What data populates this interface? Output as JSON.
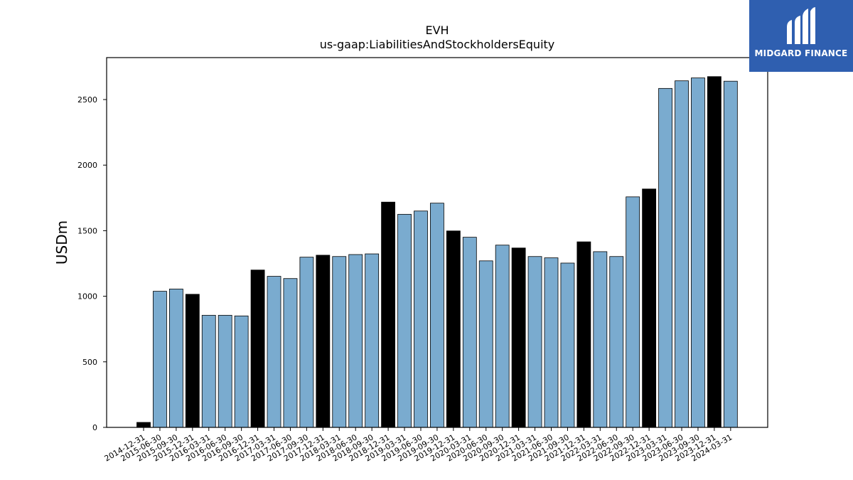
{
  "chart_data": {
    "type": "bar",
    "title": "EVH",
    "subtitle": "us-gaap:LiabilitiesAndStockholdersEquity",
    "xlabel": "",
    "ylabel": "USDm",
    "ylim": [
      0,
      2820
    ],
    "yticks": [
      0,
      500,
      1000,
      1500,
      2000,
      2500
    ],
    "grid": false,
    "legend": "none",
    "categories": [
      "2014-12-31",
      "2015-06-30",
      "2015-09-30",
      "2015-12-31",
      "2016-03-31",
      "2016-06-30",
      "2016-09-30",
      "2016-12-31",
      "2017-03-31",
      "2017-06-30",
      "2017-09-30",
      "2017-12-31",
      "2018-03-31",
      "2018-06-30",
      "2018-09-30",
      "2018-12-31",
      "2019-03-31",
      "2019-06-30",
      "2019-09-30",
      "2019-12-31",
      "2020-03-31",
      "2020-06-30",
      "2020-09-30",
      "2020-12-31",
      "2021-03-31",
      "2021-06-30",
      "2021-09-30",
      "2021-12-31",
      "2022-03-31",
      "2022-06-30",
      "2022-09-30",
      "2022-12-31",
      "2023-03-31",
      "2023-06-30",
      "2023-09-30",
      "2023-12-31",
      "2024-03-31"
    ],
    "values": [
      38,
      1038,
      1055,
      1015,
      855,
      855,
      850,
      1200,
      1152,
      1135,
      1298,
      1313,
      1303,
      1318,
      1323,
      1718,
      1625,
      1650,
      1710,
      1498,
      1450,
      1270,
      1390,
      1368,
      1303,
      1293,
      1253,
      1415,
      1340,
      1303,
      1758,
      1818,
      2585,
      2643,
      2665,
      2675,
      2640
    ],
    "year_end": [
      true,
      false,
      false,
      true,
      false,
      false,
      false,
      true,
      false,
      false,
      false,
      true,
      false,
      false,
      false,
      true,
      false,
      false,
      false,
      true,
      false,
      false,
      false,
      true,
      false,
      false,
      false,
      true,
      false,
      false,
      false,
      true,
      false,
      false,
      false,
      true,
      false
    ],
    "colors": {
      "quarter": "#7aabcf",
      "year_end": "#000000",
      "edge": "#000000"
    }
  },
  "logo": {
    "text": "MIDGARD FINANCE",
    "color": "#2f5fb0"
  }
}
